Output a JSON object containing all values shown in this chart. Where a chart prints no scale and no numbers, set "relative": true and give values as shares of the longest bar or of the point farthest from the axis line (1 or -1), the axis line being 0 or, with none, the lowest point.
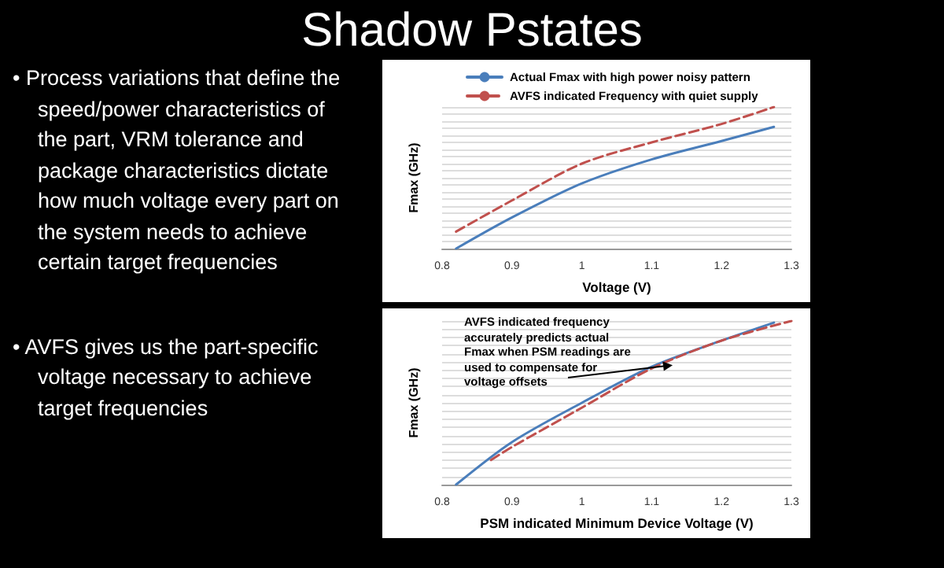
{
  "chart_data": [
    {
      "type": "other",
      "title": "Shadow Pstates",
      "annotations": [
        "• Process variations that define the speed/power characteristics of the part, VRM tolerance and package characteristics dictate how much voltage every part on the system needs to achieve certain target frequencies",
        "• AVFS gives us the part-specific voltage necessary to achieve target frequencies"
      ]
    },
    {
      "type": "line",
      "xlabel": "Voltage (V)",
      "ylabel": "Fmax (GHz)",
      "relative": true,
      "xlim": [
        0.8,
        1.3
      ],
      "xticks": [
        0.8,
        0.9,
        1,
        1.1,
        1.2,
        1.3
      ],
      "grid": "y",
      "legend": "top left",
      "marker": "none",
      "series": [
        {
          "name": "Actual Fmax with high power noisy pattern",
          "color": "#4a7ebb",
          "line_style": "solid",
          "x": [
            0.82,
            0.9,
            1.0,
            1.1,
            1.2,
            1.275
          ],
          "values": [
            0,
            0.22,
            0.46,
            0.63,
            0.76,
            0.86
          ]
        },
        {
          "name": "AVFS indicated Frequency with quiet supply",
          "color": "#c0504d",
          "line_style": "dashed",
          "x": [
            0.82,
            0.9,
            1.0,
            1.1,
            1.2,
            1.275
          ],
          "values": [
            0.12,
            0.34,
            0.6,
            0.75,
            0.88,
            1
          ]
        }
      ]
    },
    {
      "type": "line",
      "xlabel": "PSM indicated Minimum Device Voltage (V)",
      "ylabel": "Fmax (GHz)",
      "relative": true,
      "xlim": [
        0.8,
        1.3
      ],
      "xticks": [
        0.8,
        0.9,
        1,
        1.1,
        1.2,
        1.3
      ],
      "grid": "y",
      "marker": "none",
      "annotations": [
        {
          "text": "AVFS indicated frequency accurately predicts actual Fmax when PSM readings are used to compensate for voltage offsets",
          "x": 1.13,
          "y": 0.73
        }
      ],
      "series": [
        {
          "color": "#4a7ebb",
          "line_style": "solid",
          "x": [
            0.82,
            0.9,
            1.0,
            1.1,
            1.2,
            1.275
          ],
          "values": [
            0,
            0.26,
            0.5,
            0.72,
            0.88,
            0.99
          ]
        },
        {
          "color": "#c0504d",
          "line_style": "dashed",
          "x": [
            0.87,
            0.9,
            1.0,
            1.1,
            1.2,
            1.3
          ],
          "values": [
            0.15,
            0.23,
            0.47,
            0.71,
            0.88,
            1
          ]
        }
      ]
    }
  ]
}
